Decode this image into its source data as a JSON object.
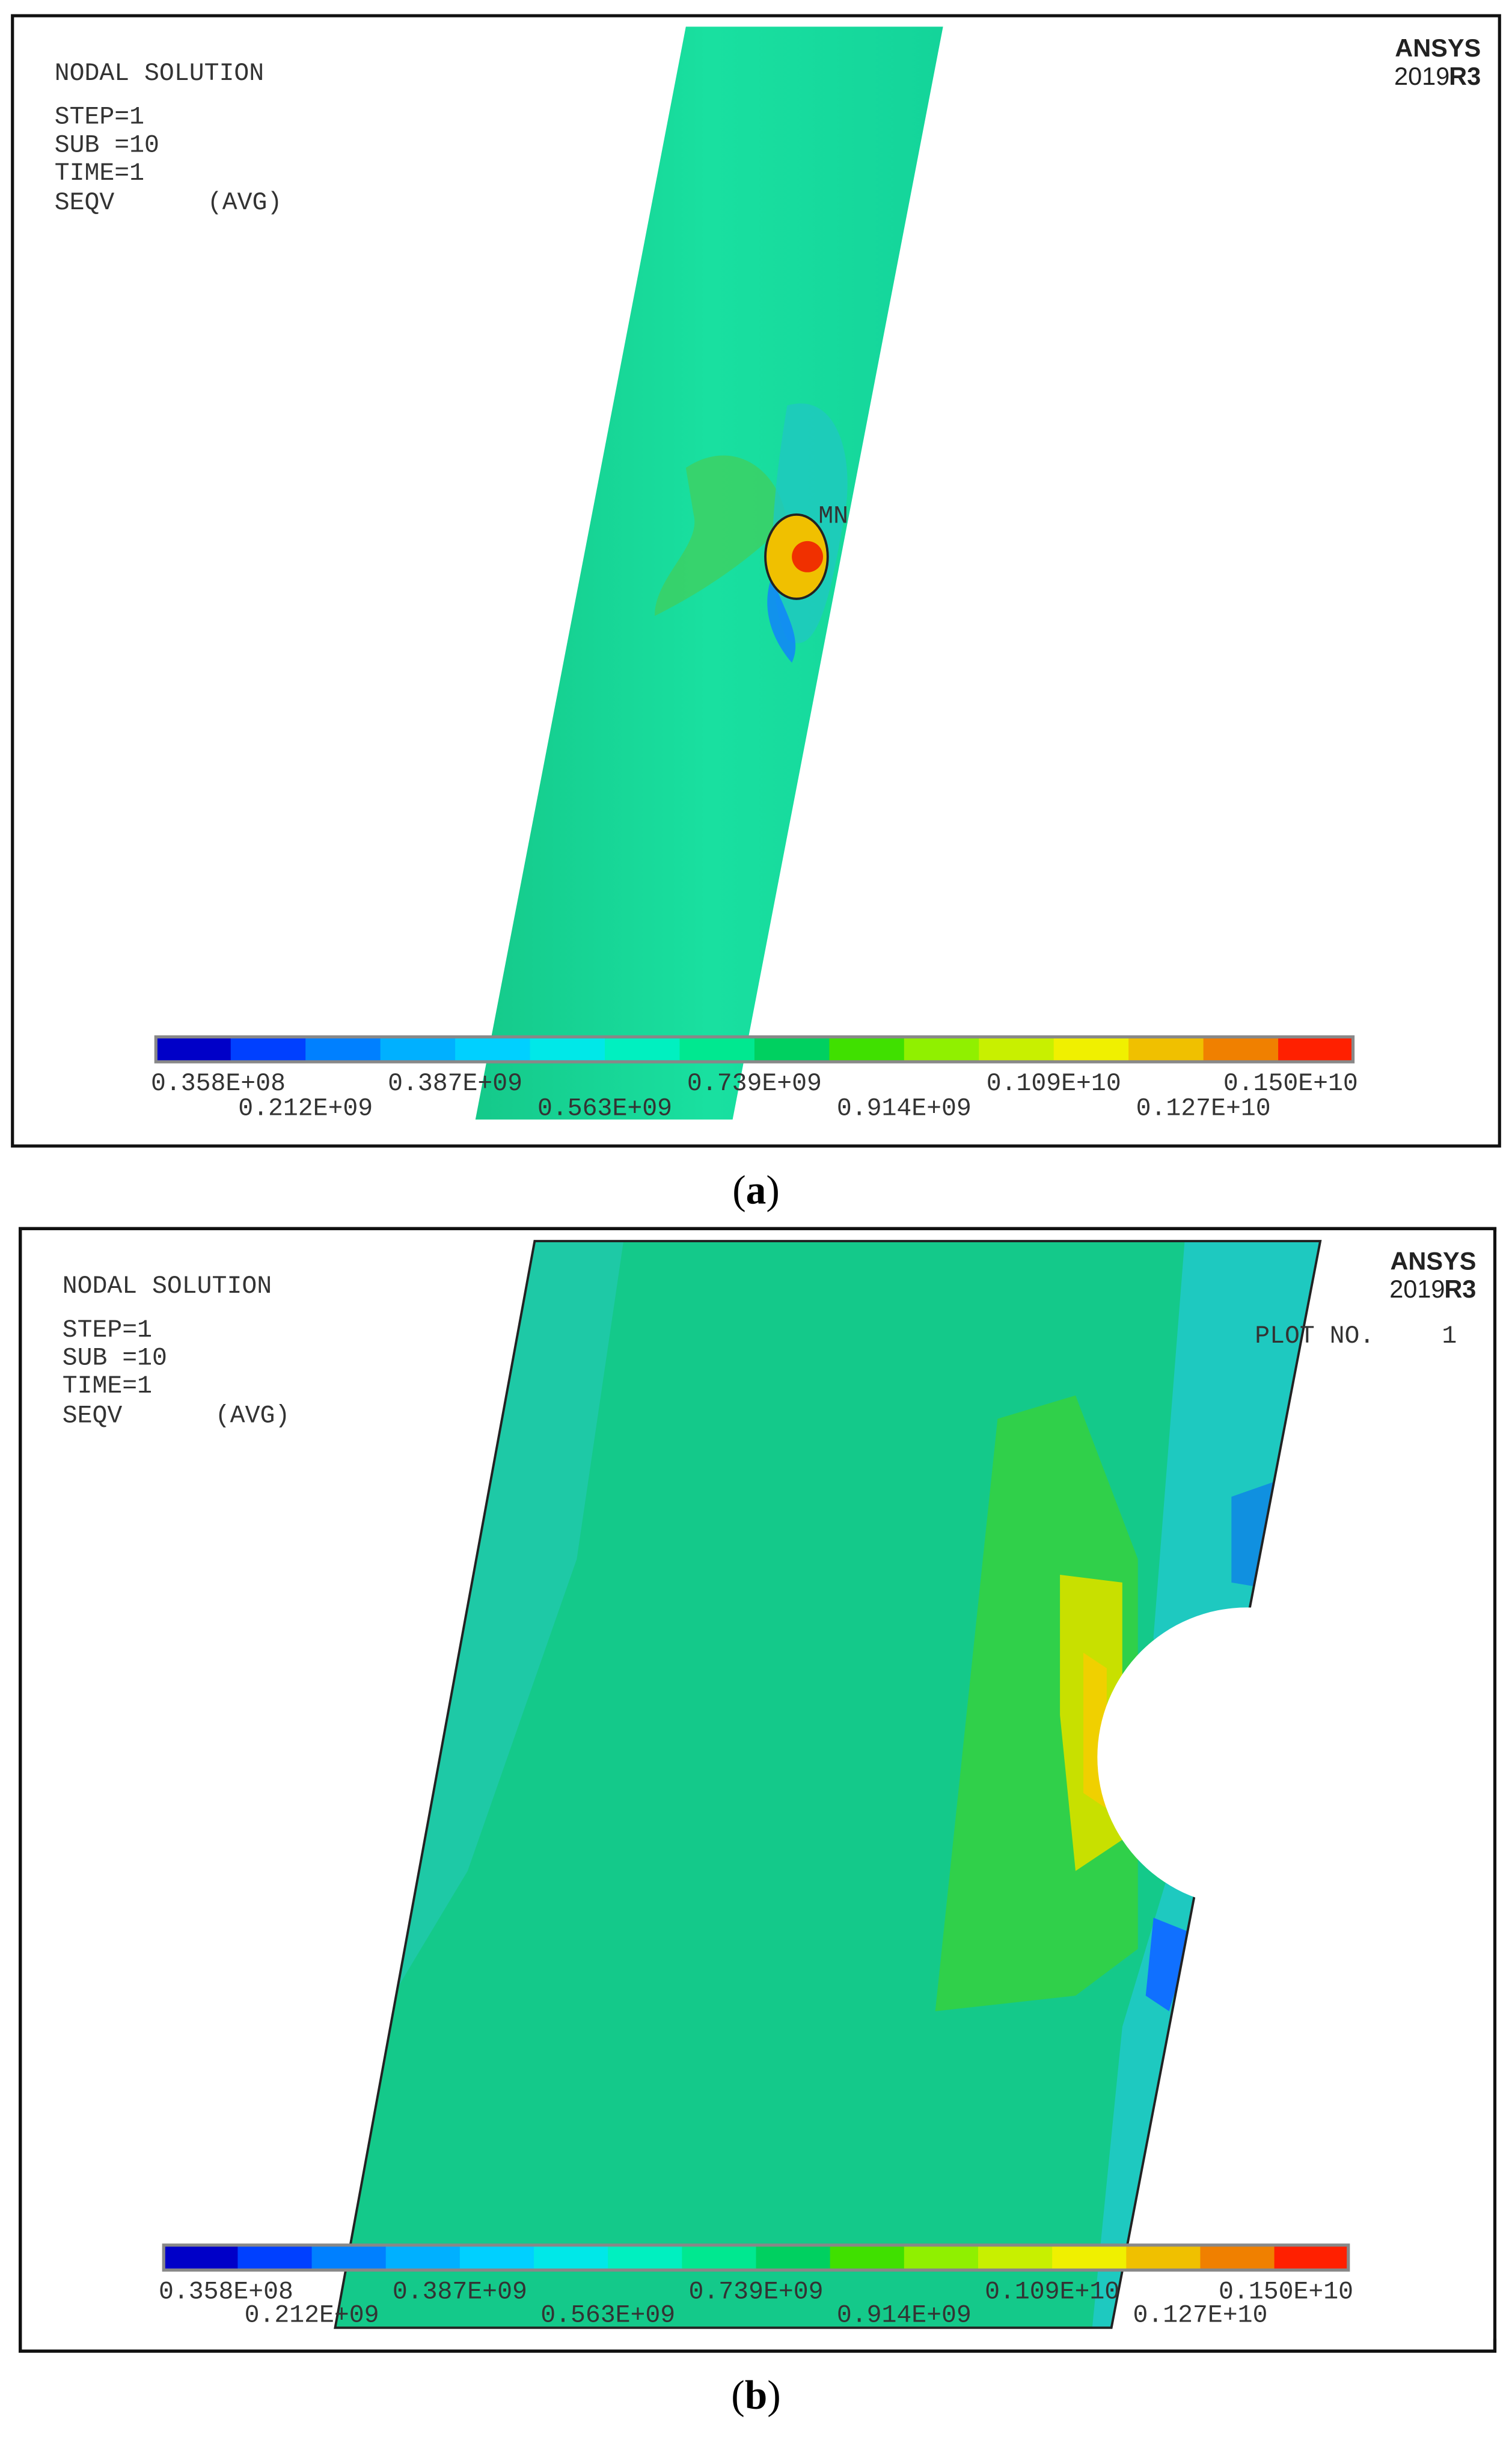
{
  "panels": [
    {
      "header": {
        "title": "NODAL SOLUTION",
        "lines": [
          "STEP=1",
          "SUB =10",
          "TIME=1"
        ],
        "quantity": "SEQV",
        "avg": "(AVG)"
      },
      "logo": {
        "brand": "ANSYS",
        "year": "2019",
        "release": "R3"
      },
      "marker": "MN",
      "legend_labels": [
        "0.358E+08",
        "0.212E+09",
        "0.387E+09",
        "0.563E+09",
        "0.739E+09",
        "0.914E+09",
        "0.109E+10",
        "0.127E+10",
        "0.150E+10"
      ],
      "caption": {
        "open": "(",
        "letter": "a",
        "close": ")"
      }
    },
    {
      "header": {
        "title": "NODAL SOLUTION",
        "lines": [
          "STEP=1",
          "SUB =10",
          "TIME=1"
        ],
        "quantity": "SEQV",
        "avg": "(AVG)"
      },
      "logo": {
        "brand": "ANSYS",
        "year": "2019",
        "release": "R3"
      },
      "plot_no": {
        "label": "PLOT NO.",
        "value": "1"
      },
      "legend_labels": [
        "0.358E+08",
        "0.212E+09",
        "0.387E+09",
        "0.563E+09",
        "0.739E+09",
        "0.914E+09",
        "0.109E+10",
        "0.127E+10",
        "0.150E+10"
      ],
      "caption": {
        "open": "(",
        "letter": "b",
        "close": ")"
      }
    }
  ]
}
